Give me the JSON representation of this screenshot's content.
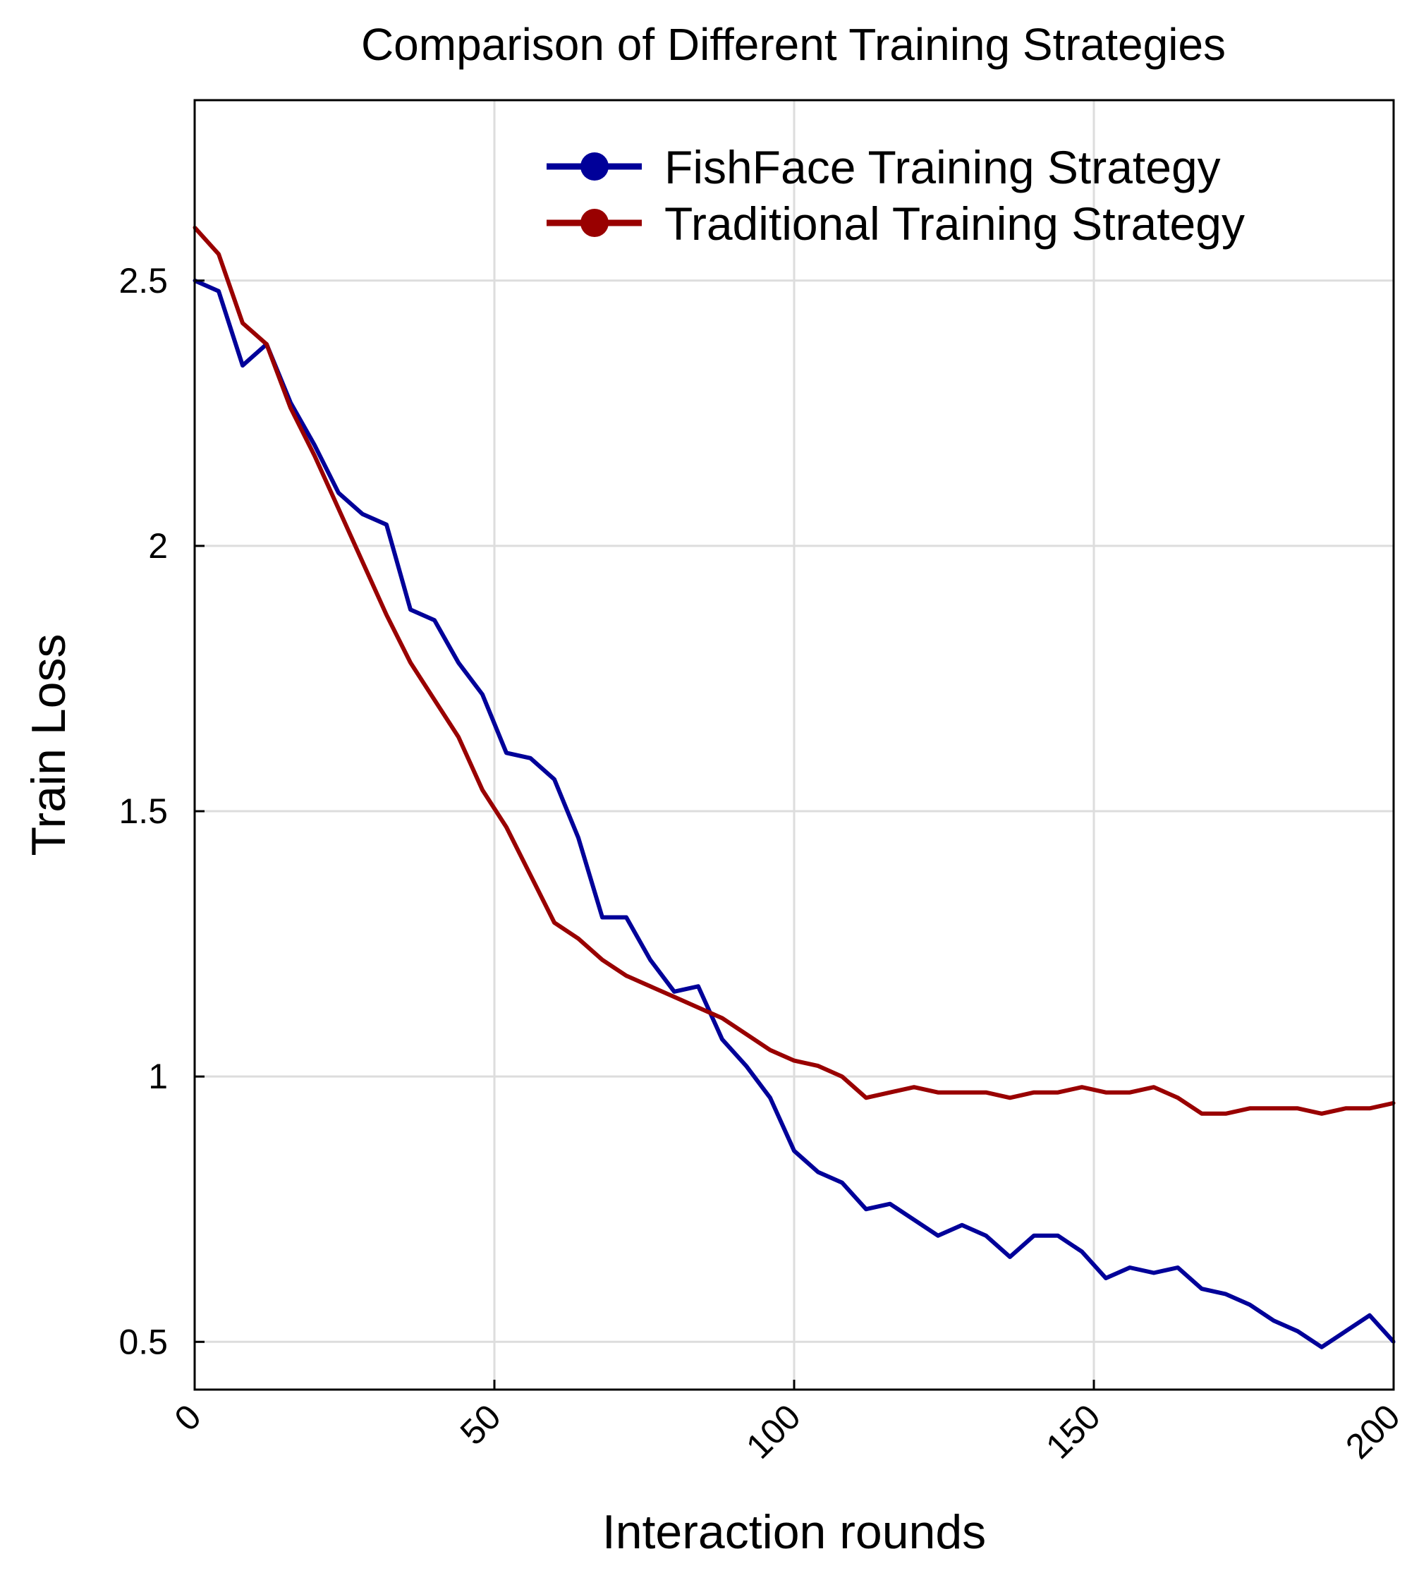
{
  "chart_data": {
    "type": "line",
    "title": "Comparison of Different Training Strategies",
    "xlabel": "Interaction rounds",
    "ylabel": "Train Loss",
    "xlim": [
      0,
      200
    ],
    "ylim": [
      0.41,
      2.84
    ],
    "xticks": [
      0,
      50,
      100,
      150,
      200
    ],
    "xtick_labels": [
      "0",
      "50",
      "100",
      "150",
      "200"
    ],
    "yticks": [
      0.5,
      1,
      1.5,
      2,
      2.5
    ],
    "ytick_labels": [
      "0.5",
      "1",
      "1.5",
      "2",
      "2.5"
    ],
    "grid": true,
    "legend_position": "top-right",
    "x": [
      0,
      4,
      8,
      12,
      16,
      20,
      24,
      28,
      32,
      36,
      40,
      44,
      48,
      52,
      56,
      60,
      64,
      68,
      72,
      76,
      80,
      84,
      88,
      92,
      96,
      100,
      104,
      108,
      112,
      116,
      120,
      124,
      128,
      132,
      136,
      140,
      144,
      148,
      152,
      156,
      160,
      164,
      168,
      172,
      176,
      180,
      184,
      188,
      192,
      196,
      200
    ],
    "series": [
      {
        "name": "FishFace Training Strategy",
        "color": "#000099",
        "values": [
          2.5,
          2.48,
          2.34,
          2.38,
          2.27,
          2.19,
          2.1,
          2.06,
          2.04,
          1.88,
          1.86,
          1.78,
          1.72,
          1.61,
          1.6,
          1.56,
          1.45,
          1.3,
          1.3,
          1.22,
          1.16,
          1.17,
          1.07,
          1.02,
          0.96,
          0.86,
          0.82,
          0.8,
          0.75,
          0.76,
          0.73,
          0.7,
          0.72,
          0.7,
          0.66,
          0.7,
          0.7,
          0.67,
          0.62,
          0.64,
          0.63,
          0.64,
          0.6,
          0.59,
          0.57,
          0.54,
          0.52,
          0.49,
          0.52,
          0.55,
          0.5
        ]
      },
      {
        "name": "Traditional Training Strategy",
        "color": "#990000",
        "values": [
          2.6,
          2.55,
          2.42,
          2.38,
          2.26,
          2.17,
          2.07,
          1.97,
          1.87,
          1.78,
          1.71,
          1.64,
          1.54,
          1.47,
          1.38,
          1.29,
          1.26,
          1.22,
          1.19,
          1.17,
          1.15,
          1.13,
          1.11,
          1.08,
          1.05,
          1.03,
          1.02,
          1.0,
          0.96,
          0.97,
          0.98,
          0.97,
          0.97,
          0.97,
          0.96,
          0.97,
          0.97,
          0.98,
          0.97,
          0.97,
          0.98,
          0.96,
          0.93,
          0.93,
          0.94,
          0.94,
          0.94,
          0.93,
          0.94,
          0.94,
          0.95
        ]
      }
    ]
  }
}
